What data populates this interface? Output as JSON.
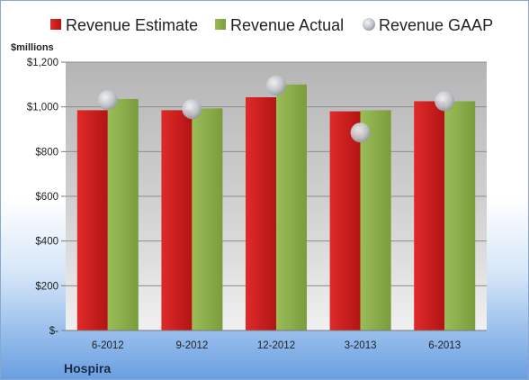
{
  "colors": {
    "estimate": "#cc1f1f",
    "actual": "#8aad4a",
    "gaap": "#b8bcc4"
  },
  "chart_data": {
    "type": "bar",
    "categories": [
      "6-2012",
      "9-2012",
      "12-2012",
      "3-2013",
      "6-2013"
    ],
    "series": [
      {
        "name": "Revenue Estimate",
        "values": [
          985,
          985,
          1043,
          980,
          1025
        ]
      },
      {
        "name": "Revenue Actual",
        "values": [
          1035,
          993,
          1100,
          985,
          1025
        ]
      },
      {
        "name": "Revenue GAAP",
        "values": [
          1030,
          990,
          1095,
          885,
          1025
        ]
      }
    ],
    "ylabel": "$millions",
    "ylim": [
      0,
      1200
    ],
    "yticks": [
      0,
      200,
      400,
      600,
      800,
      1000,
      1200
    ],
    "ytick_labels": [
      "$-",
      "$200",
      "$400",
      "$600",
      "$800",
      "$1,000",
      "$1,200"
    ],
    "legend_position": "top",
    "grid": true,
    "company": "Hospira"
  }
}
